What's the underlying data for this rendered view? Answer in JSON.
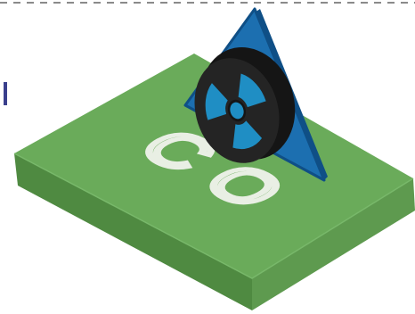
{
  "illustration": {
    "slab_text": "CO",
    "colors": {
      "slab_top": "#6aab5a",
      "slab_front": "#4f8a41",
      "slab_side": "#5e9a4f",
      "slab_text": "#e9efe4",
      "triangle": "#1c6fb0",
      "triangle_edge": "#0f4f86",
      "disk_dark": "#242424",
      "disk_side": "#151515",
      "hazard_blue": "#1f8ec4",
      "dash": "#8a8a8a",
      "edge_mark": "#3a3f8c"
    },
    "icons": [
      "radiation-hazard-icon",
      "warning-triangle-icon"
    ]
  }
}
